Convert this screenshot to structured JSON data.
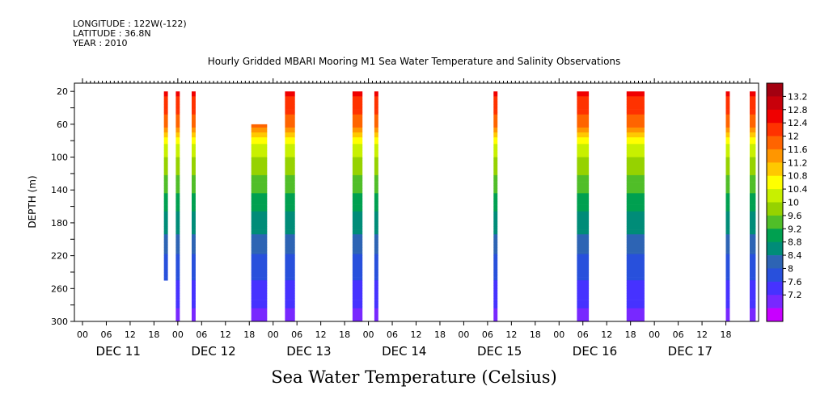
{
  "header": {
    "longitude": "LONGITUDE : 122W(-122)",
    "latitude": "LATITUDE : 36.8N",
    "year": "YEAR : 2010"
  },
  "chart_data": {
    "type": "heatmap",
    "title": "Hourly Gridded MBARI Mooring M1 Sea Water Temperature and Salinity Observations",
    "xlabel": "",
    "ylabel": "DEPTH (m)",
    "colorbar_title": "Sea Water Temperature (Celsius)",
    "y_inverted": true,
    "ylim": [
      300,
      10
    ],
    "y_ticks": [
      "20",
      "60",
      "100",
      "140",
      "180",
      "220",
      "260",
      "300"
    ],
    "x_start_hour": 0,
    "x_end_hour": 168,
    "x_hour_ticks": [
      "00",
      "06",
      "12",
      "18"
    ],
    "day_labels": [
      "DEC 11",
      "DEC 12",
      "DEC 13",
      "DEC 14",
      "DEC 15",
      "DEC 16",
      "DEC 17"
    ],
    "colorbar_levels": [
      "13.2",
      "12.8",
      "12.4",
      "12",
      "11.6",
      "11.2",
      "10.8",
      "10.4",
      "10",
      "9.6",
      "9.2",
      "8.8",
      "8.4",
      "8",
      "7.6",
      "7.2"
    ],
    "colorbar_colors": [
      "#a30010",
      "#c8000a",
      "#f00000",
      "#ff3200",
      "#ff6400",
      "#ff9600",
      "#ffc800",
      "#ffff00",
      "#c8f000",
      "#96d200",
      "#50be28",
      "#00a050",
      "#008c78",
      "#2d64b4",
      "#2850dc",
      "#4632ff",
      "#7828ff",
      "#c800ff"
    ],
    "segments": [
      {
        "t_start": 20.5,
        "t_end": 21.5,
        "top_depth": 20,
        "bottom_depth": 250
      },
      {
        "t_start": 23.5,
        "t_end": 24.5,
        "top_depth": 20,
        "bottom_depth": 300
      },
      {
        "t_start": 27.5,
        "t_end": 28.5,
        "top_depth": 20,
        "bottom_depth": 300
      },
      {
        "t_start": 42.5,
        "t_end": 46.5,
        "top_depth": 60,
        "bottom_depth": 300
      },
      {
        "t_start": 51.0,
        "t_end": 53.5,
        "top_depth": 20,
        "bottom_depth": 300
      },
      {
        "t_start": 68.0,
        "t_end": 70.5,
        "top_depth": 20,
        "bottom_depth": 300
      },
      {
        "t_start": 73.5,
        "t_end": 74.5,
        "top_depth": 20,
        "bottom_depth": 300
      },
      {
        "t_start": 103.5,
        "t_end": 104.5,
        "top_depth": 20,
        "bottom_depth": 300
      },
      {
        "t_start": 124.5,
        "t_end": 127.5,
        "top_depth": 20,
        "bottom_depth": 300
      },
      {
        "t_start": 137.0,
        "t_end": 141.5,
        "top_depth": 20,
        "bottom_depth": 300
      },
      {
        "t_start": 162.0,
        "t_end": 163.0,
        "top_depth": 20,
        "bottom_depth": 300
      },
      {
        "t_start": 168.0,
        "t_end": 169.5,
        "top_depth": 20,
        "bottom_depth": 300
      }
    ],
    "temperature_profile": {
      "depths": [
        20,
        40,
        60,
        70,
        80,
        100,
        120,
        140,
        160,
        180,
        200,
        220,
        240,
        260,
        280,
        300
      ],
      "values": [
        12.3,
        12.0,
        11.7,
        11.2,
        10.6,
        10.2,
        9.9,
        9.6,
        9.3,
        9.0,
        8.8,
        8.5,
        8.3,
        8.1,
        7.9,
        7.7
      ]
    }
  }
}
